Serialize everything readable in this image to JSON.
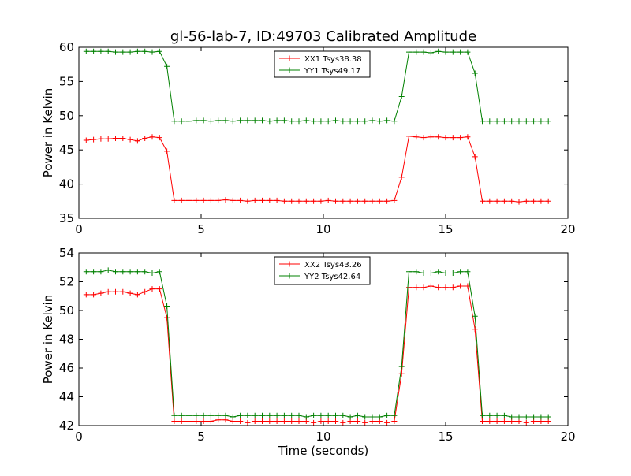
{
  "title": "gl-56-lab-7, ID:49703 Calibrated Amplitude",
  "chart_data": [
    {
      "type": "line",
      "xlabel": "",
      "ylabel": "Power in Kelvin",
      "xlim": [
        0,
        20
      ],
      "ylim": [
        35,
        60
      ],
      "xticks": [
        "0",
        "5",
        "10",
        "15",
        "20"
      ],
      "yticks": [
        "35",
        "40",
        "45",
        "50",
        "55",
        "60"
      ],
      "legend_position": "top-center",
      "grid": false,
      "series": [
        {
          "name": "XX1 Tsys38.38",
          "color": "#ff0000",
          "x": [
            0.3,
            0.6,
            0.9,
            1.2,
            1.5,
            1.8,
            2.1,
            2.4,
            2.7,
            3.0,
            3.3,
            3.6,
            3.9,
            4.2,
            4.5,
            4.8,
            5.1,
            5.4,
            5.7,
            6.0,
            6.3,
            6.6,
            6.9,
            7.2,
            7.5,
            7.8,
            8.1,
            8.4,
            8.7,
            9.0,
            9.3,
            9.6,
            9.9,
            10.2,
            10.5,
            10.8,
            11.1,
            11.4,
            11.7,
            12.0,
            12.3,
            12.6,
            12.9,
            13.2,
            13.5,
            13.8,
            14.1,
            14.4,
            14.7,
            15.0,
            15.3,
            15.6,
            15.9,
            16.2,
            16.5,
            16.8,
            17.1,
            17.4,
            17.7,
            18.0,
            18.3,
            18.6,
            18.9,
            19.2
          ],
          "y": [
            46.4,
            46.5,
            46.6,
            46.6,
            46.7,
            46.7,
            46.5,
            46.3,
            46.7,
            46.9,
            46.8,
            44.8,
            37.6,
            37.6,
            37.6,
            37.6,
            37.6,
            37.6,
            37.6,
            37.7,
            37.6,
            37.6,
            37.5,
            37.6,
            37.6,
            37.6,
            37.6,
            37.5,
            37.5,
            37.5,
            37.5,
            37.5,
            37.5,
            37.6,
            37.5,
            37.5,
            37.5,
            37.5,
            37.5,
            37.5,
            37.5,
            37.5,
            37.6,
            41.0,
            47.0,
            46.9,
            46.8,
            46.9,
            46.9,
            46.8,
            46.8,
            46.8,
            46.9,
            44.0,
            37.5,
            37.5,
            37.5,
            37.5,
            37.5,
            37.4,
            37.5,
            37.5,
            37.5,
            37.5
          ]
        },
        {
          "name": "YY1 Tsys49.17",
          "color": "#008000",
          "x": [
            0.3,
            0.6,
            0.9,
            1.2,
            1.5,
            1.8,
            2.1,
            2.4,
            2.7,
            3.0,
            3.3,
            3.6,
            3.9,
            4.2,
            4.5,
            4.8,
            5.1,
            5.4,
            5.7,
            6.0,
            6.3,
            6.6,
            6.9,
            7.2,
            7.5,
            7.8,
            8.1,
            8.4,
            8.7,
            9.0,
            9.3,
            9.6,
            9.9,
            10.2,
            10.5,
            10.8,
            11.1,
            11.4,
            11.7,
            12.0,
            12.3,
            12.6,
            12.9,
            13.2,
            13.5,
            13.8,
            14.1,
            14.4,
            14.7,
            15.0,
            15.3,
            15.6,
            15.9,
            16.2,
            16.5,
            16.8,
            17.1,
            17.4,
            17.7,
            18.0,
            18.3,
            18.6,
            18.9,
            19.2
          ],
          "y": [
            59.4,
            59.4,
            59.4,
            59.4,
            59.3,
            59.3,
            59.3,
            59.4,
            59.4,
            59.3,
            59.4,
            57.2,
            49.2,
            49.2,
            49.2,
            49.3,
            49.3,
            49.2,
            49.3,
            49.3,
            49.2,
            49.3,
            49.3,
            49.3,
            49.3,
            49.2,
            49.3,
            49.3,
            49.2,
            49.2,
            49.3,
            49.2,
            49.2,
            49.2,
            49.3,
            49.2,
            49.2,
            49.2,
            49.2,
            49.3,
            49.2,
            49.3,
            49.2,
            52.8,
            59.3,
            59.3,
            59.3,
            59.2,
            59.4,
            59.3,
            59.3,
            59.3,
            59.3,
            56.2,
            49.2,
            49.2,
            49.2,
            49.2,
            49.2,
            49.2,
            49.2,
            49.2,
            49.2,
            49.2
          ]
        }
      ]
    },
    {
      "type": "line",
      "xlabel": "Time (seconds)",
      "ylabel": "Power in Kelvin",
      "xlim": [
        0,
        20
      ],
      "ylim": [
        42,
        54
      ],
      "xticks": [
        "0",
        "5",
        "10",
        "15",
        "20"
      ],
      "yticks": [
        "42",
        "44",
        "46",
        "48",
        "50",
        "52",
        "54"
      ],
      "legend_position": "top-center",
      "grid": false,
      "series": [
        {
          "name": "XX2 Tsys43.26",
          "color": "#ff0000",
          "x": [
            0.3,
            0.6,
            0.9,
            1.2,
            1.5,
            1.8,
            2.1,
            2.4,
            2.7,
            3.0,
            3.3,
            3.6,
            3.9,
            4.2,
            4.5,
            4.8,
            5.1,
            5.4,
            5.7,
            6.0,
            6.3,
            6.6,
            6.9,
            7.2,
            7.5,
            7.8,
            8.1,
            8.4,
            8.7,
            9.0,
            9.3,
            9.6,
            9.9,
            10.2,
            10.5,
            10.8,
            11.1,
            11.4,
            11.7,
            12.0,
            12.3,
            12.6,
            12.9,
            13.2,
            13.5,
            13.8,
            14.1,
            14.4,
            14.7,
            15.0,
            15.3,
            15.6,
            15.9,
            16.2,
            16.5,
            16.8,
            17.1,
            17.4,
            17.7,
            18.0,
            18.3,
            18.6,
            18.9,
            19.2
          ],
          "y": [
            51.1,
            51.1,
            51.2,
            51.3,
            51.3,
            51.3,
            51.2,
            51.1,
            51.3,
            51.5,
            51.5,
            49.5,
            42.3,
            42.3,
            42.3,
            42.3,
            42.3,
            42.3,
            42.4,
            42.4,
            42.3,
            42.3,
            42.2,
            42.3,
            42.3,
            42.3,
            42.3,
            42.3,
            42.3,
            42.3,
            42.3,
            42.2,
            42.3,
            42.3,
            42.3,
            42.2,
            42.3,
            42.3,
            42.2,
            42.3,
            42.3,
            42.2,
            42.3,
            45.6,
            51.6,
            51.6,
            51.6,
            51.7,
            51.6,
            51.6,
            51.6,
            51.7,
            51.7,
            48.7,
            42.3,
            42.3,
            42.3,
            42.3,
            42.3,
            42.3,
            42.2,
            42.3,
            42.3,
            42.3
          ]
        },
        {
          "name": "YY2 Tsys42.64",
          "color": "#008000",
          "x": [
            0.3,
            0.6,
            0.9,
            1.2,
            1.5,
            1.8,
            2.1,
            2.4,
            2.7,
            3.0,
            3.3,
            3.6,
            3.9,
            4.2,
            4.5,
            4.8,
            5.1,
            5.4,
            5.7,
            6.0,
            6.3,
            6.6,
            6.9,
            7.2,
            7.5,
            7.8,
            8.1,
            8.4,
            8.7,
            9.0,
            9.3,
            9.6,
            9.9,
            10.2,
            10.5,
            10.8,
            11.1,
            11.4,
            11.7,
            12.0,
            12.3,
            12.6,
            12.9,
            13.2,
            13.5,
            13.8,
            14.1,
            14.4,
            14.7,
            15.0,
            15.3,
            15.6,
            15.9,
            16.2,
            16.5,
            16.8,
            17.1,
            17.4,
            17.7,
            18.0,
            18.3,
            18.6,
            18.9,
            19.2
          ],
          "y": [
            52.7,
            52.7,
            52.7,
            52.8,
            52.7,
            52.7,
            52.7,
            52.7,
            52.7,
            52.6,
            52.7,
            50.3,
            42.7,
            42.7,
            42.7,
            42.7,
            42.7,
            42.7,
            42.7,
            42.7,
            42.6,
            42.7,
            42.7,
            42.7,
            42.7,
            42.7,
            42.7,
            42.7,
            42.7,
            42.7,
            42.6,
            42.7,
            42.7,
            42.7,
            42.7,
            42.7,
            42.6,
            42.7,
            42.6,
            42.6,
            42.6,
            42.7,
            42.7,
            46.1,
            52.7,
            52.7,
            52.6,
            52.6,
            52.7,
            52.6,
            52.6,
            52.7,
            52.7,
            49.6,
            42.7,
            42.7,
            42.7,
            42.7,
            42.6,
            42.6,
            42.6,
            42.6,
            42.6,
            42.6
          ]
        }
      ]
    }
  ]
}
